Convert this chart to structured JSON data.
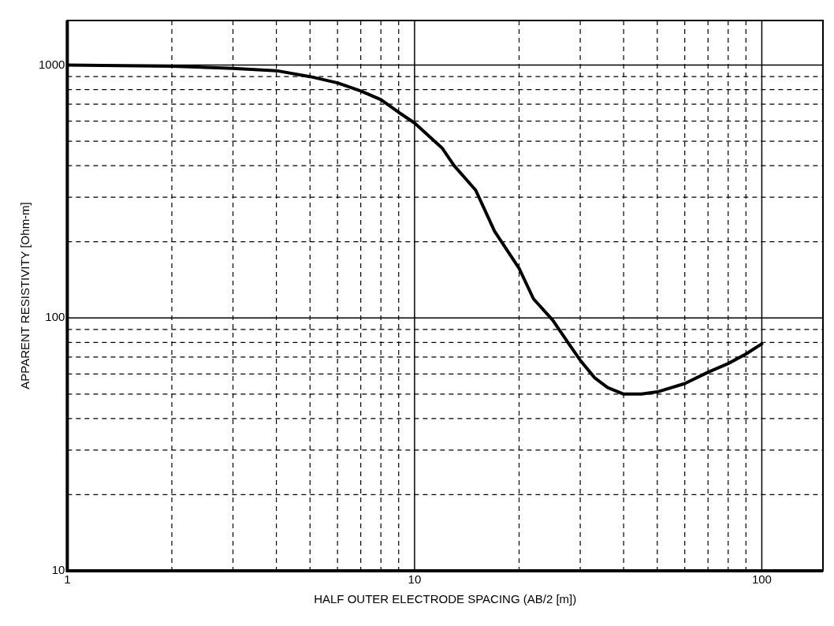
{
  "chart_data": {
    "type": "line",
    "xlabel": "HALF OUTER ELECTRODE SPACING (AB/2 [m])",
    "ylabel": "APPARENT RESISTIVITY [Ohm-m]",
    "log": "xy",
    "grid": true,
    "legend": false,
    "marker": "none",
    "line_style": "solid",
    "xlim": [
      1,
      150
    ],
    "ylim": [
      10,
      1500
    ],
    "xticks": [
      1,
      {
        "value": 2,
        "label": null
      },
      {
        "value": 3,
        "label": null
      },
      {
        "value": 4,
        "label": null
      },
      {
        "value": 5,
        "label": null
      },
      {
        "value": 6,
        "label": null
      },
      {
        "value": 7,
        "label": null
      },
      {
        "value": 8,
        "label": null
      },
      {
        "value": 9,
        "label": null
      },
      10,
      {
        "value": 20,
        "label": null
      },
      {
        "value": 30,
        "label": null
      },
      {
        "value": 40,
        "label": null
      },
      {
        "value": 50,
        "label": null
      },
      {
        "value": 60,
        "label": null
      },
      {
        "value": 70,
        "label": null
      },
      {
        "value": 80,
        "label": null
      },
      {
        "value": 90,
        "label": null
      },
      100
    ],
    "yticks": [
      10,
      {
        "value": 20,
        "label": null
      },
      {
        "value": 30,
        "label": null
      },
      {
        "value": 40,
        "label": null
      },
      {
        "value": 50,
        "label": null
      },
      {
        "value": 60,
        "label": null
      },
      {
        "value": 70,
        "label": null
      },
      {
        "value": 80,
        "label": null
      },
      {
        "value": 90,
        "label": null
      },
      100,
      {
        "value": 200,
        "label": null
      },
      {
        "value": 300,
        "label": null
      },
      {
        "value": 400,
        "label": null
      },
      {
        "value": 500,
        "label": null
      },
      {
        "value": 600,
        "label": null
      },
      {
        "value": 700,
        "label": null
      },
      {
        "value": 800,
        "label": null
      },
      {
        "value": 900,
        "label": null
      },
      1000
    ],
    "series": [
      {
        "color": "#000000",
        "x": [
          1,
          2,
          3,
          4,
          5,
          6,
          7,
          8,
          9,
          10,
          12,
          13,
          15,
          17,
          20,
          22,
          25,
          28,
          30,
          33,
          36,
          40,
          45,
          50,
          60,
          70,
          80,
          90,
          100
        ],
        "values": [
          1000,
          990,
          970,
          950,
          900,
          850,
          790,
          730,
          650,
          590,
          470,
          400,
          320,
          220,
          157,
          119,
          98,
          78,
          68,
          58,
          53,
          50,
          50,
          51,
          55,
          61,
          66,
          72,
          79
        ]
      }
    ]
  }
}
